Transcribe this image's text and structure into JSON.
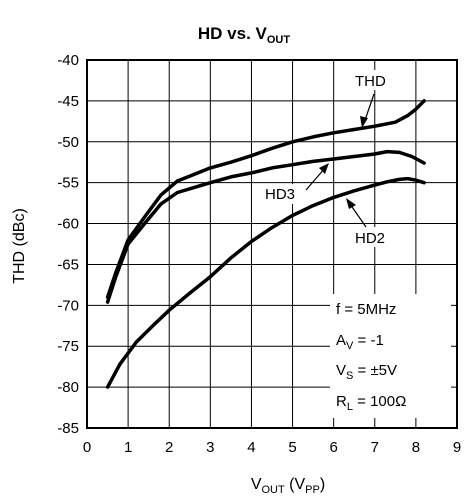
{
  "chart_data": {
    "type": "line",
    "title": "HD vs. V",
    "title_sub": "OUT",
    "xlabel": "V",
    "xlabel_sub": "OUT",
    "xlabel_paren_open": " (V",
    "xlabel_paren_sub": "PP",
    "xlabel_paren_close": ")",
    "ylabel": "THD (dBc)",
    "xlim": [
      0,
      9
    ],
    "ylim": [
      -85,
      -40
    ],
    "x_ticks": [
      0,
      1,
      2,
      3,
      4,
      5,
      6,
      7,
      8,
      9
    ],
    "y_ticks": [
      -40,
      -45,
      -50,
      -55,
      -60,
      -65,
      -70,
      -75,
      -80,
      -85
    ],
    "grid": true,
    "series": [
      {
        "name": "THD",
        "x": [
          0.5,
          0.7,
          1.0,
          1.4,
          1.8,
          2.2,
          2.6,
          3.0,
          3.5,
          4.0,
          4.5,
          5.0,
          5.5,
          6.0,
          6.5,
          7.0,
          7.5,
          7.8,
          8.0,
          8.2
        ],
        "y": [
          -69.0,
          -66.0,
          -62.0,
          -59.2,
          -56.5,
          -54.8,
          -54.0,
          -53.2,
          -52.5,
          -51.7,
          -50.8,
          -50.0,
          -49.4,
          -48.9,
          -48.5,
          -48.1,
          -47.6,
          -46.8,
          -46.0,
          -45.0
        ]
      },
      {
        "name": "HD3",
        "x": [
          0.5,
          0.7,
          1.0,
          1.4,
          1.8,
          2.2,
          2.6,
          3.0,
          3.5,
          4.0,
          4.5,
          5.0,
          5.5,
          6.0,
          6.5,
          7.0,
          7.3,
          7.6,
          7.9,
          8.2
        ],
        "y": [
          -69.6,
          -66.5,
          -62.5,
          -60.0,
          -57.6,
          -56.2,
          -55.6,
          -55.0,
          -54.3,
          -53.8,
          -53.2,
          -52.8,
          -52.4,
          -52.1,
          -51.8,
          -51.5,
          -51.2,
          -51.3,
          -51.8,
          -52.6
        ]
      },
      {
        "name": "HD2",
        "x": [
          0.5,
          0.8,
          1.2,
          1.6,
          2.0,
          2.5,
          3.0,
          3.5,
          4.0,
          4.5,
          5.0,
          5.5,
          6.0,
          6.5,
          7.0,
          7.3,
          7.6,
          7.8,
          8.0,
          8.2
        ],
        "y": [
          -80.0,
          -77.2,
          -74.5,
          -72.5,
          -70.6,
          -68.5,
          -66.5,
          -64.2,
          -62.2,
          -60.5,
          -59.0,
          -57.8,
          -56.8,
          -56.0,
          -55.3,
          -54.9,
          -54.6,
          -54.5,
          -54.7,
          -55.0
        ]
      }
    ],
    "annotations": {
      "line1": "f = 5MHz",
      "line2_main": "A",
      "line2_sub": "V",
      "line2_rest": " = -1",
      "line3_main": "V",
      "line3_sub": "S",
      "line3_rest": " = ±5V",
      "line4_main": "R",
      "line4_sub": "L",
      "line4_rest": " = 100Ω"
    },
    "series_labels": {
      "THD": "THD",
      "HD3": "HD3",
      "HD2": "HD2"
    }
  }
}
